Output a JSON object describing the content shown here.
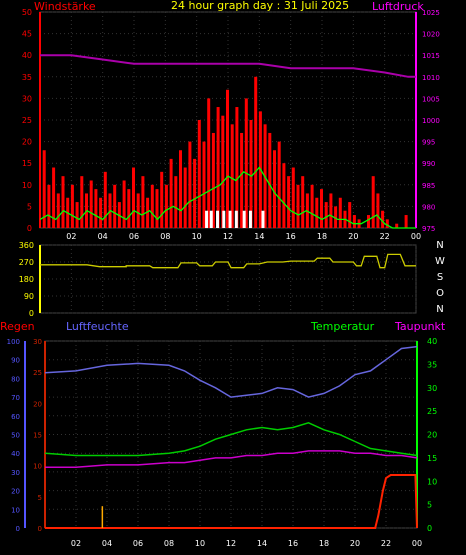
{
  "header": {
    "title": "24 hour graph day : 31 Juli 2025",
    "left_label": "Windstärke",
    "right_label": "Luftdruck"
  },
  "bottom_header": {
    "regen": "Regen",
    "luftfeuchte": "Luftfeuchte",
    "temperatur": "Temperatur",
    "taupunkt": "Taupunkt"
  },
  "x_ticks": [
    "02",
    "04",
    "06",
    "08",
    "10",
    "12",
    "14",
    "16",
    "18",
    "20",
    "22",
    "00"
  ],
  "colors": {
    "wind_bar": "#ff0000",
    "wind_avg": "#00ff00",
    "gust_white": "#ffffff",
    "pressure": "#aa00aa",
    "direction": "#cccc00",
    "humidity": "#6666dd",
    "temperature": "#00cc00",
    "dewpoint": "#cc00cc",
    "rain": "#ff2200",
    "rain_rate": "#ffaa00",
    "axis_red": "#ff0000",
    "axis_magenta": "#ff00ff",
    "axis_blue": "#5555ff",
    "axis_green": "#00ff00",
    "axis_yellow": "#ffff00",
    "axis_white": "#ffffff",
    "axis_darkred": "#cc2200"
  },
  "chart_data": [
    {
      "type": "bar",
      "x_range_hours": [
        0,
        24
      ],
      "ylim": [
        0,
        50
      ],
      "y_ticks": [
        0,
        5,
        10,
        15,
        20,
        25,
        30,
        35,
        40,
        45,
        50
      ],
      "y2lim": [
        975,
        1025
      ],
      "y2_ticks": [
        975,
        980,
        985,
        990,
        995,
        1000,
        1005,
        1010,
        1015,
        1020,
        1025
      ],
      "wind_max_bars": [
        [
          0.3,
          18
        ],
        [
          0.6,
          10
        ],
        [
          0.9,
          14
        ],
        [
          1.2,
          8
        ],
        [
          1.5,
          12
        ],
        [
          1.8,
          7
        ],
        [
          2.1,
          10
        ],
        [
          2.4,
          6
        ],
        [
          2.7,
          12
        ],
        [
          3.0,
          8
        ],
        [
          3.3,
          11
        ],
        [
          3.6,
          9
        ],
        [
          3.9,
          7
        ],
        [
          4.2,
          13
        ],
        [
          4.5,
          8
        ],
        [
          4.8,
          10
        ],
        [
          5.1,
          6
        ],
        [
          5.4,
          11
        ],
        [
          5.7,
          9
        ],
        [
          6.0,
          14
        ],
        [
          6.3,
          8
        ],
        [
          6.6,
          12
        ],
        [
          6.9,
          7
        ],
        [
          7.2,
          10
        ],
        [
          7.5,
          9
        ],
        [
          7.8,
          13
        ],
        [
          8.1,
          10
        ],
        [
          8.4,
          16
        ],
        [
          8.7,
          12
        ],
        [
          9.0,
          18
        ],
        [
          9.3,
          14
        ],
        [
          9.6,
          20
        ],
        [
          9.9,
          16
        ],
        [
          10.2,
          25
        ],
        [
          10.5,
          20
        ],
        [
          10.8,
          30
        ],
        [
          11.1,
          22
        ],
        [
          11.4,
          28
        ],
        [
          11.7,
          26
        ],
        [
          12.0,
          32
        ],
        [
          12.3,
          24
        ],
        [
          12.6,
          28
        ],
        [
          12.9,
          22
        ],
        [
          13.2,
          30
        ],
        [
          13.5,
          25
        ],
        [
          13.8,
          35
        ],
        [
          14.1,
          27
        ],
        [
          14.4,
          24
        ],
        [
          14.7,
          22
        ],
        [
          15.0,
          18
        ],
        [
          15.3,
          20
        ],
        [
          15.6,
          15
        ],
        [
          15.9,
          12
        ],
        [
          16.2,
          14
        ],
        [
          16.5,
          10
        ],
        [
          16.8,
          12
        ],
        [
          17.1,
          8
        ],
        [
          17.4,
          10
        ],
        [
          17.7,
          7
        ],
        [
          18.0,
          9
        ],
        [
          18.3,
          6
        ],
        [
          18.6,
          8
        ],
        [
          18.9,
          5
        ],
        [
          19.2,
          7
        ],
        [
          19.5,
          4
        ],
        [
          19.8,
          6
        ],
        [
          20.1,
          3
        ],
        [
          20.4,
          2
        ],
        [
          20.7,
          0
        ],
        [
          21.0,
          3
        ],
        [
          21.3,
          12
        ],
        [
          21.6,
          8
        ],
        [
          21.9,
          4
        ],
        [
          22.2,
          2
        ],
        [
          22.5,
          0
        ],
        [
          22.8,
          1
        ],
        [
          23.1,
          0
        ],
        [
          23.4,
          3
        ],
        [
          23.7,
          0
        ]
      ],
      "wind_avg": [
        [
          0,
          2
        ],
        [
          0.5,
          3
        ],
        [
          1,
          2
        ],
        [
          1.5,
          4
        ],
        [
          2,
          3
        ],
        [
          2.5,
          2
        ],
        [
          3,
          4
        ],
        [
          3.5,
          3
        ],
        [
          4,
          2
        ],
        [
          4.5,
          4
        ],
        [
          5,
          3
        ],
        [
          5.5,
          2
        ],
        [
          6,
          4
        ],
        [
          6.5,
          3
        ],
        [
          7,
          4
        ],
        [
          7.5,
          2
        ],
        [
          8,
          4
        ],
        [
          8.5,
          5
        ],
        [
          9,
          4
        ],
        [
          9.5,
          6
        ],
        [
          10,
          7
        ],
        [
          10.5,
          8
        ],
        [
          11,
          9
        ],
        [
          11.5,
          10
        ],
        [
          12,
          12
        ],
        [
          12.5,
          11
        ],
        [
          13,
          13
        ],
        [
          13.5,
          12
        ],
        [
          14,
          14
        ],
        [
          14.5,
          11
        ],
        [
          15,
          8
        ],
        [
          15.5,
          6
        ],
        [
          16,
          4
        ],
        [
          16.5,
          3
        ],
        [
          17,
          4
        ],
        [
          17.5,
          3
        ],
        [
          18,
          2
        ],
        [
          18.5,
          3
        ],
        [
          19,
          2
        ],
        [
          19.5,
          2
        ],
        [
          20,
          1
        ],
        [
          20.5,
          1
        ],
        [
          21,
          2
        ],
        [
          21.5,
          3
        ],
        [
          22,
          1
        ],
        [
          22.5,
          0
        ],
        [
          23,
          0
        ],
        [
          23.5,
          0
        ],
        [
          24,
          0
        ]
      ],
      "gust_markers_hours": [
        10.6,
        10.9,
        11.3,
        11.7,
        12.1,
        12.5,
        13.0,
        13.4,
        14.2
      ],
      "pressure": [
        [
          0,
          1015
        ],
        [
          2,
          1015
        ],
        [
          4,
          1014
        ],
        [
          6,
          1013
        ],
        [
          8,
          1013
        ],
        [
          10,
          1013
        ],
        [
          12,
          1013
        ],
        [
          14,
          1013
        ],
        [
          16,
          1012
        ],
        [
          18,
          1012
        ],
        [
          20,
          1012
        ],
        [
          22,
          1011
        ],
        [
          23.5,
          1010
        ],
        [
          24,
          1010
        ]
      ]
    },
    {
      "type": "line",
      "x_range_hours": [
        0,
        24
      ],
      "ylim": [
        0,
        360
      ],
      "y_ticks": [
        0,
        90,
        180,
        270,
        360
      ],
      "compass": [
        "N",
        "W",
        "S",
        "O",
        "N"
      ],
      "direction": [
        [
          0,
          255
        ],
        [
          3,
          255
        ],
        [
          3.8,
          245
        ],
        [
          5.5,
          245
        ],
        [
          5.5,
          250
        ],
        [
          7,
          250
        ],
        [
          7.2,
          240
        ],
        [
          8.8,
          240
        ],
        [
          9,
          265
        ],
        [
          10,
          265
        ],
        [
          10.2,
          250
        ],
        [
          11,
          250
        ],
        [
          11.2,
          270
        ],
        [
          12,
          270
        ],
        [
          12.2,
          240
        ],
        [
          13,
          240
        ],
        [
          13.2,
          260
        ],
        [
          14,
          260
        ],
        [
          14.5,
          270
        ],
        [
          15.5,
          270
        ],
        [
          16,
          275
        ],
        [
          17.5,
          275
        ],
        [
          17.7,
          290
        ],
        [
          18.5,
          290
        ],
        [
          18.7,
          270
        ],
        [
          20,
          270
        ],
        [
          20.2,
          250
        ],
        [
          20.5,
          250
        ],
        [
          20.7,
          300
        ],
        [
          21.5,
          300
        ],
        [
          21.7,
          240
        ],
        [
          22,
          240
        ],
        [
          22.2,
          310
        ],
        [
          23,
          310
        ],
        [
          23.3,
          250
        ],
        [
          24,
          250
        ]
      ]
    },
    {
      "type": "line",
      "x_range_hours": [
        0,
        24
      ],
      "humidity_ylim": [
        0,
        100
      ],
      "humidity_ticks": [
        0,
        10,
        20,
        30,
        40,
        50,
        60,
        70,
        80,
        90,
        100
      ],
      "rain_ylim": [
        0,
        30
      ],
      "rain_ticks": [
        0,
        5,
        10,
        15,
        20,
        25,
        30
      ],
      "temp_ylim": [
        0,
        40
      ],
      "temp_ticks": [
        0,
        5,
        10,
        15,
        20,
        25,
        30,
        35,
        40
      ],
      "humidity": [
        [
          0,
          83
        ],
        [
          2,
          84
        ],
        [
          4,
          87
        ],
        [
          6,
          88
        ],
        [
          8,
          87
        ],
        [
          9,
          84
        ],
        [
          10,
          79
        ],
        [
          11,
          75
        ],
        [
          12,
          70
        ],
        [
          13,
          71
        ],
        [
          14,
          72
        ],
        [
          15,
          75
        ],
        [
          16,
          74
        ],
        [
          17,
          70
        ],
        [
          18,
          72
        ],
        [
          19,
          76
        ],
        [
          20,
          82
        ],
        [
          21,
          84
        ],
        [
          22,
          90
        ],
        [
          23,
          96
        ],
        [
          24,
          97
        ]
      ],
      "temperature": [
        [
          0,
          16
        ],
        [
          2,
          15.5
        ],
        [
          4,
          15.5
        ],
        [
          6,
          15.5
        ],
        [
          8,
          16
        ],
        [
          9,
          16.5
        ],
        [
          10,
          17.5
        ],
        [
          11,
          19
        ],
        [
          12,
          20
        ],
        [
          13,
          21
        ],
        [
          14,
          21.5
        ],
        [
          15,
          21
        ],
        [
          16,
          21.5
        ],
        [
          17,
          22.5
        ],
        [
          18,
          21
        ],
        [
          19,
          20
        ],
        [
          20,
          18.5
        ],
        [
          21,
          17
        ],
        [
          22,
          16.5
        ],
        [
          23,
          16
        ],
        [
          24,
          15.5
        ]
      ],
      "dewpoint": [
        [
          0,
          13
        ],
        [
          2,
          13
        ],
        [
          4,
          13.5
        ],
        [
          6,
          13.5
        ],
        [
          8,
          14
        ],
        [
          9,
          14
        ],
        [
          10,
          14.5
        ],
        [
          11,
          15
        ],
        [
          12,
          15
        ],
        [
          13,
          15.5
        ],
        [
          14,
          15.5
        ],
        [
          15,
          16
        ],
        [
          16,
          16
        ],
        [
          17,
          16.5
        ],
        [
          18,
          16.5
        ],
        [
          19,
          16.5
        ],
        [
          20,
          16
        ],
        [
          21,
          16
        ],
        [
          22,
          15.5
        ],
        [
          23,
          15.5
        ],
        [
          24,
          15
        ]
      ],
      "rain_total": [
        [
          0,
          0
        ],
        [
          21.3,
          0
        ],
        [
          21.5,
          2
        ],
        [
          21.8,
          6
        ],
        [
          22.0,
          8
        ],
        [
          22.3,
          8.5
        ],
        [
          23.9,
          8.5
        ],
        [
          24,
          0
        ]
      ],
      "rain_rate_spikes": [
        [
          3.7,
          3.5
        ]
      ]
    }
  ]
}
